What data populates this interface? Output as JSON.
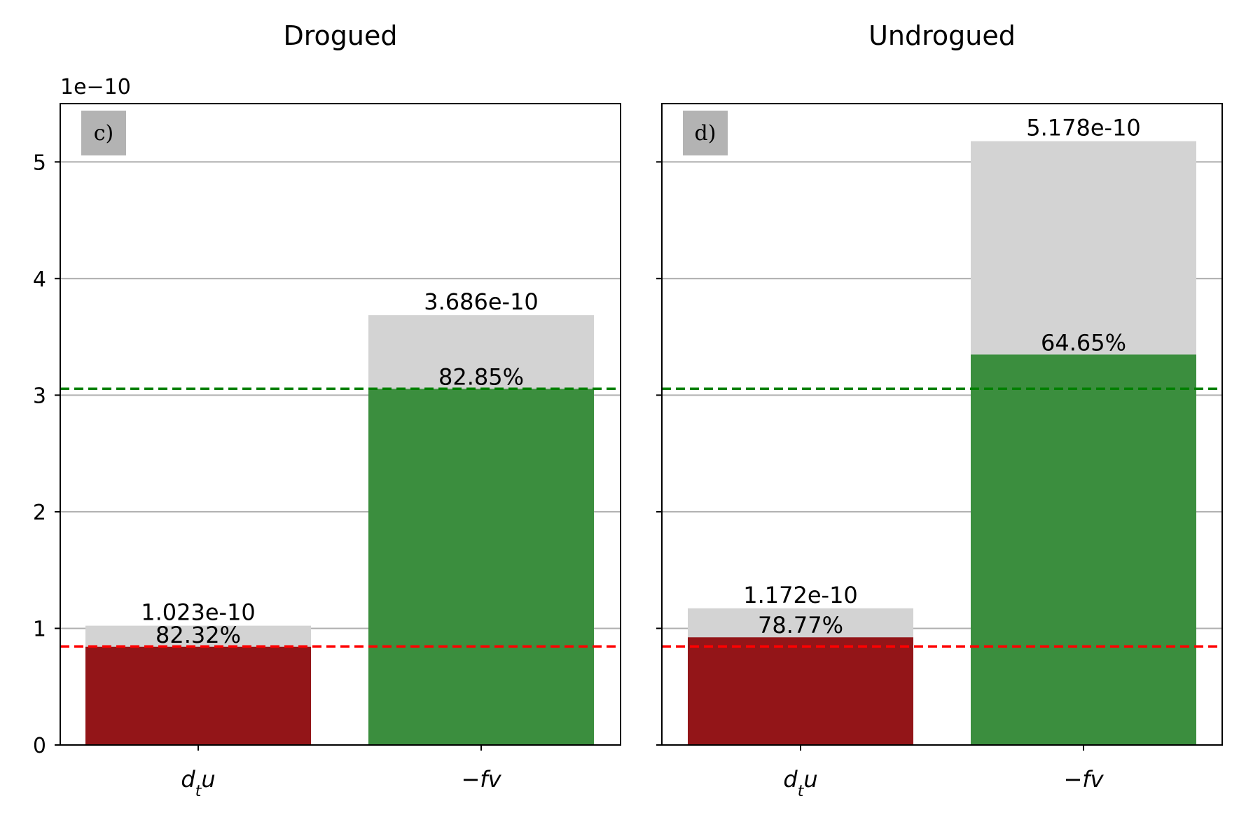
{
  "chart_data": [
    {
      "type": "bar",
      "title": "Drogued",
      "panel_label": "c)",
      "categories": [
        "d_t u",
        "−f v"
      ],
      "category_labels": [
        {
          "main": "d",
          "sub": "t",
          "tail": "u"
        },
        {
          "main": "−fv",
          "sub": "",
          "tail": ""
        }
      ],
      "series": [
        {
          "values": [
            1.023,
            3.686
          ],
          "labels": [
            "1.023e-10",
            "3.686e-10"
          ]
        },
        {
          "values": [
            0.8421,
            3.054
          ],
          "labels": [
            "82.32%",
            "82.85%"
          ]
        }
      ],
      "reference_lines": [
        {
          "value": 0.845,
          "color": "#ff0000",
          "style": "dashed"
        },
        {
          "value": 3.055,
          "color": "#008000",
          "style": "dashed"
        }
      ],
      "yticks": [
        0,
        1,
        2,
        3,
        4,
        5
      ],
      "ylim": [
        0,
        5.5
      ],
      "yaxis_offset_text": "1e−10",
      "grid": "y",
      "colors": {
        "total": "#d3d3d3",
        "part": [
          "#931518",
          "#3b8e3e"
        ]
      }
    },
    {
      "type": "bar",
      "title": "Undrogued",
      "panel_label": "d)",
      "categories": [
        "d_t u",
        "−f v"
      ],
      "category_labels": [
        {
          "main": "d",
          "sub": "t",
          "tail": "u"
        },
        {
          "main": "−fv",
          "sub": "",
          "tail": ""
        }
      ],
      "series": [
        {
          "values": [
            1.172,
            5.178
          ],
          "labels": [
            "1.172e-10",
            "5.178e-10"
          ]
        },
        {
          "values": [
            0.9232,
            3.348
          ],
          "labels": [
            "78.77%",
            "64.65%"
          ]
        }
      ],
      "reference_lines": [
        {
          "value": 0.845,
          "color": "#ff0000",
          "style": "dashed"
        },
        {
          "value": 3.055,
          "color": "#008000",
          "style": "dashed"
        }
      ],
      "yticks": [
        0,
        1,
        2,
        3,
        4,
        5
      ],
      "ylim": [
        0,
        5.5
      ],
      "grid": "y",
      "colors": {
        "total": "#d3d3d3",
        "part": [
          "#931518",
          "#3b8e3e"
        ]
      }
    }
  ]
}
